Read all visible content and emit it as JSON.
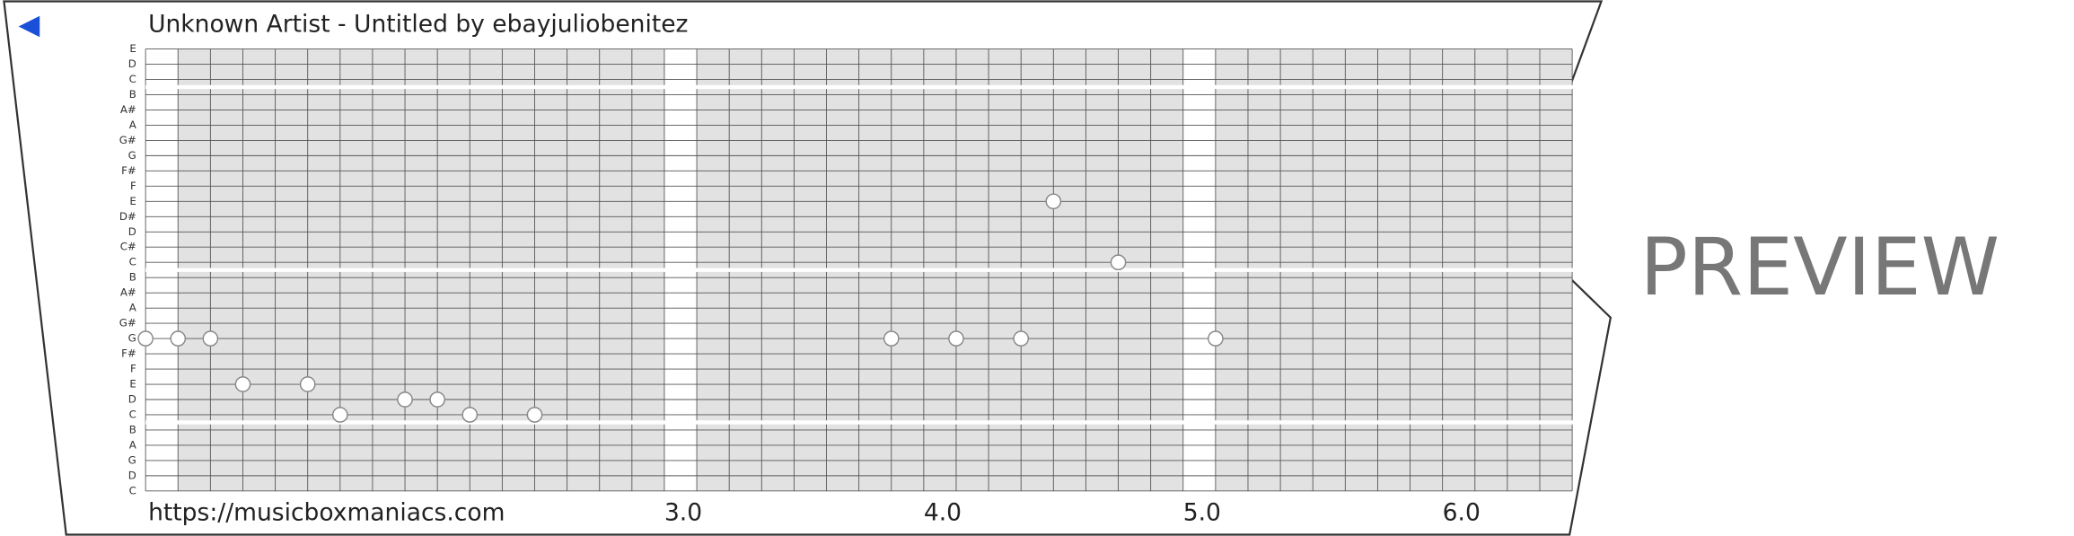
{
  "header": {
    "title": "Unknown Artist - Untitled by ebayjuliobenitez"
  },
  "footer": {
    "url": "https://musicboxmaniacs.com"
  },
  "watermark": "PREVIEW",
  "strip": {
    "xlim": [
      1,
      6.5
    ],
    "xticks": [
      {
        "value": 3,
        "label": "3.0"
      },
      {
        "value": 4,
        "label": "4.0"
      },
      {
        "value": 5,
        "label": "5.0"
      },
      {
        "value": 6,
        "label": "6.0"
      }
    ],
    "rows": [
      {
        "label": "E",
        "notes": []
      },
      {
        "label": "D",
        "notes": []
      },
      {
        "label": "C",
        "notes": []
      },
      {
        "label": "B",
        "notes": []
      },
      {
        "label": "A#",
        "notes": []
      },
      {
        "label": "A",
        "notes": []
      },
      {
        "label": "G#",
        "notes": []
      },
      {
        "label": "G",
        "notes": []
      },
      {
        "label": "F#",
        "notes": []
      },
      {
        "label": "F",
        "notes": []
      },
      {
        "label": "E",
        "notes": [
          4.5
        ]
      },
      {
        "label": "D#",
        "notes": []
      },
      {
        "label": "D",
        "notes": []
      },
      {
        "label": "C#",
        "notes": []
      },
      {
        "label": "C",
        "notes": [
          4.75
        ]
      },
      {
        "label": "B",
        "notes": []
      },
      {
        "label": "A#",
        "notes": []
      },
      {
        "label": "A",
        "notes": []
      },
      {
        "label": "G#",
        "notes": []
      },
      {
        "label": "G",
        "notes": [
          1.0,
          1.125,
          1.25,
          3.875,
          4.125,
          4.375,
          5.125
        ]
      },
      {
        "label": "F#",
        "notes": []
      },
      {
        "label": "F",
        "notes": []
      },
      {
        "label": "E",
        "notes": [
          1.375,
          1.625
        ]
      },
      {
        "label": "D",
        "notes": [
          2.0,
          2.125
        ]
      },
      {
        "label": "C",
        "notes": [
          1.75,
          2.25,
          2.5
        ]
      },
      {
        "label": "B",
        "notes": []
      },
      {
        "label": "A",
        "notes": []
      },
      {
        "label": "G",
        "notes": []
      },
      {
        "label": "D",
        "notes": []
      },
      {
        "label": "C",
        "notes": []
      }
    ]
  }
}
